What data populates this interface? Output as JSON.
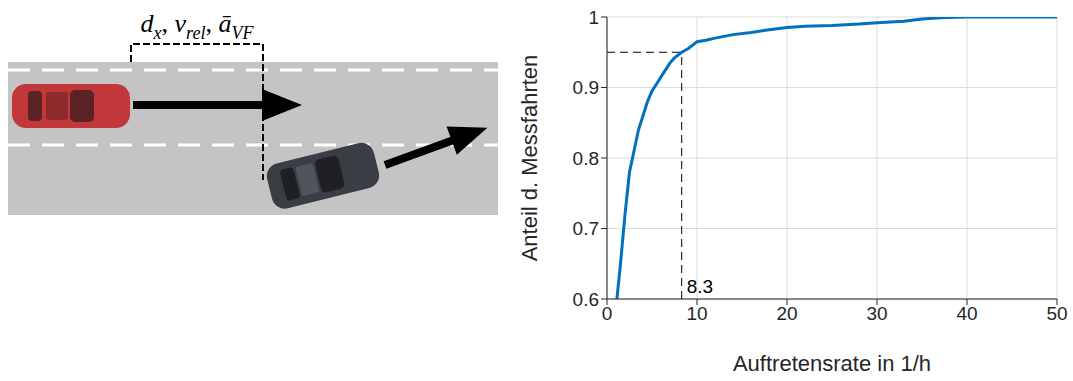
{
  "diagram": {
    "label": [
      {
        "symbol": "d",
        "subscript": "x"
      },
      {
        "symbol": "v",
        "subscript": "rel"
      },
      {
        "symbol": "ā",
        "subscript": "VF"
      }
    ],
    "separator": ", "
  },
  "chart_data": {
    "type": "line",
    "x_label": "Auftretensrate in 1/h",
    "y_label": "Anteil d. Messfahrten",
    "x": [
      1.1,
      1.5,
      2,
      2.5,
      3,
      3.5,
      4,
      4.5,
      5,
      5.5,
      6,
      6.5,
      7,
      7.5,
      8.3,
      9,
      9.5,
      10,
      11,
      12,
      14,
      16,
      18,
      20,
      22,
      25,
      28,
      30,
      33,
      35,
      37,
      40,
      50
    ],
    "values": [
      0.6,
      0.65,
      0.72,
      0.78,
      0.81,
      0.84,
      0.86,
      0.88,
      0.895,
      0.905,
      0.915,
      0.925,
      0.935,
      0.942,
      0.95,
      0.955,
      0.96,
      0.965,
      0.967,
      0.97,
      0.975,
      0.978,
      0.982,
      0.985,
      0.987,
      0.988,
      0.99,
      0.992,
      0.994,
      0.997,
      0.999,
      1,
      1
    ],
    "color": "#0072bd",
    "xlim": [
      0,
      50
    ],
    "ylim": [
      0.6,
      1
    ],
    "xticks": [
      0,
      10,
      20,
      30,
      40,
      50
    ],
    "yticks": [
      0.6,
      0.7,
      0.8,
      0.9,
      1
    ],
    "grid": true,
    "annotations": [
      {
        "x": 8.3,
        "y": 0.95,
        "text": "8.3",
        "line_style": "dashed"
      }
    ]
  }
}
